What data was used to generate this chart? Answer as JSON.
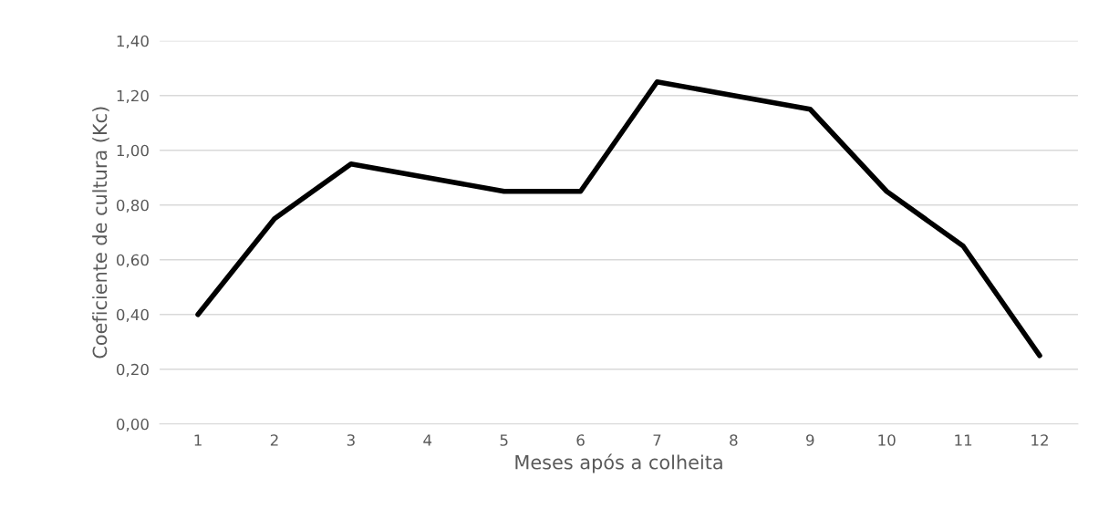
{
  "chart_data": {
    "type": "line",
    "xlabel": "Meses após a colheita",
    "ylabel": "Coeficiente de cultura (Kc)",
    "categories": [
      "1",
      "2",
      "3",
      "4",
      "5",
      "6",
      "7",
      "8",
      "9",
      "10",
      "11",
      "12"
    ],
    "series": [
      {
        "color": "#000000",
        "values": [
          0.4,
          0.75,
          0.95,
          0.9,
          0.85,
          0.85,
          1.25,
          1.2,
          1.15,
          0.85,
          0.65,
          0.25
        ]
      }
    ],
    "ylim": [
      0,
      1.4
    ],
    "yticks": [
      {
        "value": 0,
        "label": "0,00"
      },
      {
        "value": 0.2,
        "label": "0,20"
      },
      {
        "value": 0.4,
        "label": "0,40"
      },
      {
        "value": 0.6,
        "label": "0,60"
      },
      {
        "value": 0.8,
        "label": "0,80"
      },
      {
        "value": 1.0,
        "label": "1,00"
      },
      {
        "value": 1.2,
        "label": "1,20"
      },
      {
        "value": 1.4,
        "label": "1,40"
      }
    ],
    "grid": "y",
    "marker": "none",
    "line_style": "solid"
  }
}
